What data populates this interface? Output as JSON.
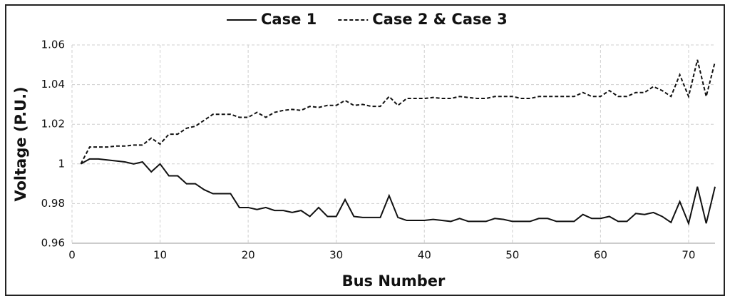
{
  "chart_data": {
    "type": "line",
    "legend": "top",
    "x_label": "Bus Number",
    "y_label": "Voltage (P.U.)",
    "x": [
      1,
      2,
      3,
      4,
      5,
      6,
      7,
      8,
      9,
      10,
      11,
      12,
      13,
      14,
      15,
      16,
      17,
      18,
      19,
      20,
      21,
      22,
      23,
      24,
      25,
      26,
      27,
      28,
      29,
      30,
      31,
      32,
      33,
      34,
      35,
      36,
      37,
      38,
      39,
      40,
      41,
      42,
      43,
      44,
      45,
      46,
      47,
      48,
      49,
      50,
      51,
      52,
      53,
      54,
      55,
      56,
      57,
      58,
      59,
      60,
      61,
      62,
      63,
      64,
      65,
      66,
      67,
      68,
      69,
      70,
      71,
      72,
      73
    ],
    "series": [
      {
        "name": "Case 1",
        "color": "#111111",
        "style": "solid",
        "values": [
          1.0,
          1.0025,
          1.0025,
          1.002,
          1.0015,
          1.001,
          1.0,
          1.001,
          0.996,
          1.0,
          0.994,
          0.994,
          0.99,
          0.99,
          0.987,
          0.985,
          0.985,
          0.985,
          0.978,
          0.978,
          0.977,
          0.978,
          0.9765,
          0.9765,
          0.9755,
          0.9765,
          0.9735,
          0.978,
          0.9735,
          0.9735,
          0.982,
          0.9735,
          0.973,
          0.973,
          0.973,
          0.984,
          0.973,
          0.9715,
          0.9715,
          0.9715,
          0.972,
          0.9715,
          0.971,
          0.9725,
          0.971,
          0.971,
          0.971,
          0.9725,
          0.972,
          0.971,
          0.971,
          0.971,
          0.9725,
          0.9725,
          0.971,
          0.971,
          0.971,
          0.9745,
          0.9725,
          0.9725,
          0.9735,
          0.971,
          0.971,
          0.975,
          0.9745,
          0.9755,
          0.9735,
          0.9705,
          0.981,
          0.97,
          0.9885,
          0.97,
          0.9885
        ]
      },
      {
        "name": "Case 2 & Case 3",
        "color": "#111111",
        "style": "dashed",
        "values": [
          1.0,
          1.0085,
          1.0085,
          1.0085,
          1.009,
          1.009,
          1.0095,
          1.0095,
          1.013,
          1.01,
          1.015,
          1.015,
          1.018,
          1.019,
          1.022,
          1.025,
          1.025,
          1.025,
          1.0235,
          1.0235,
          1.026,
          1.0235,
          1.026,
          1.027,
          1.0275,
          1.027,
          1.029,
          1.0285,
          1.0295,
          1.0295,
          1.032,
          1.0295,
          1.03,
          1.029,
          1.029,
          1.034,
          1.0295,
          1.033,
          1.033,
          1.033,
          1.0335,
          1.033,
          1.033,
          1.034,
          1.0335,
          1.033,
          1.033,
          1.034,
          1.034,
          1.034,
          1.033,
          1.033,
          1.034,
          1.034,
          1.034,
          1.034,
          1.034,
          1.036,
          1.034,
          1.034,
          1.037,
          1.034,
          1.034,
          1.036,
          1.036,
          1.039,
          1.037,
          1.034,
          1.045,
          1.034,
          1.0525,
          1.034,
          1.0515
        ]
      }
    ],
    "xlim": [
      0,
      73
    ],
    "xticks": [
      0,
      10,
      20,
      30,
      40,
      50,
      60,
      70
    ],
    "ylim": [
      0.96,
      1.06
    ],
    "yticks": [
      0.96,
      0.98,
      1,
      1.02,
      1.04,
      1.06
    ],
    "grid": true
  }
}
